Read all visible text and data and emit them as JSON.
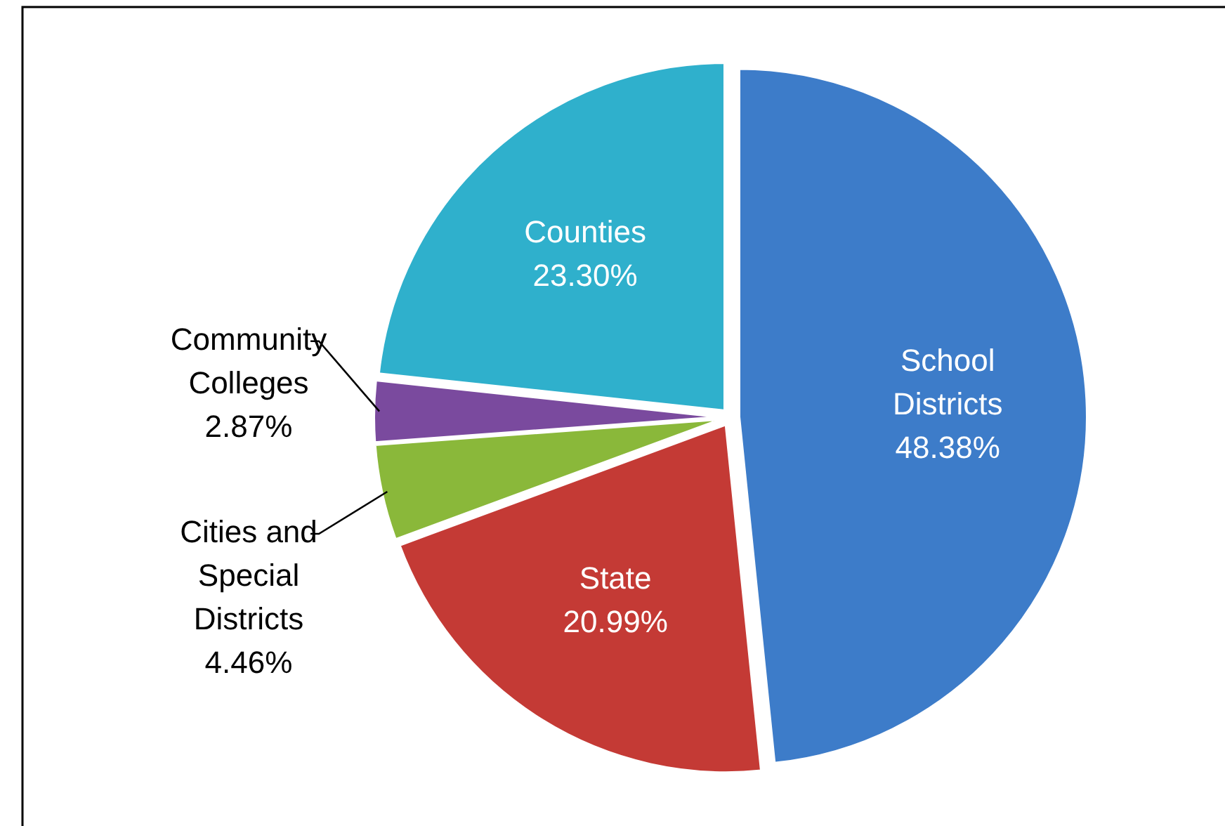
{
  "chart_data": {
    "type": "pie",
    "categories": [
      "School Districts",
      "State",
      "Cities and Special Districts",
      "Community Colleges",
      "Counties"
    ],
    "values": [
      48.38,
      20.99,
      4.46,
      2.87,
      23.3
    ],
    "value_labels": [
      "48.38%",
      "20.99%",
      "4.46%",
      "2.87%",
      "23.30%"
    ],
    "colors": [
      "#3d7cc9",
      "#c43a35",
      "#8ab83a",
      "#7a4a9e",
      "#2fb0cc"
    ]
  }
}
